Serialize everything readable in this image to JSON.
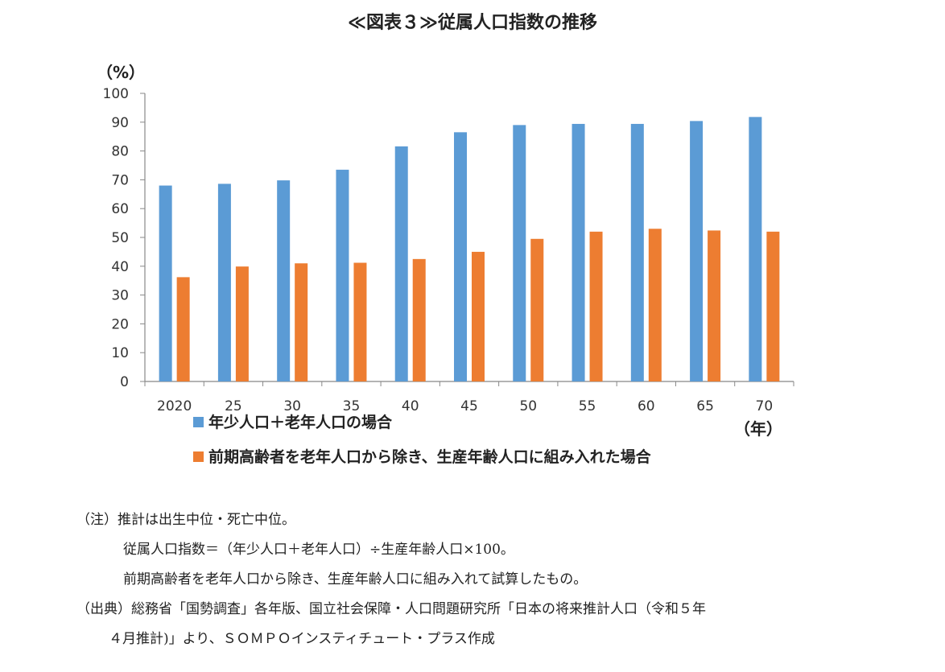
{
  "title": "≪図表３≫従属人口指数の推移",
  "chart_data": {
    "type": "bar",
    "ylabel": "（%）",
    "xlabel": "（年）",
    "ylim": [
      0,
      100
    ],
    "yticks": [
      0,
      10,
      20,
      30,
      40,
      50,
      60,
      70,
      80,
      90,
      100
    ],
    "categories": [
      "2020",
      "25",
      "30",
      "35",
      "40",
      "45",
      "50",
      "55",
      "60",
      "65",
      "70"
    ],
    "legend_position": "bottom-left",
    "series": [
      {
        "name": "年少人口＋老年人口の場合",
        "color": "#5b9bd5",
        "values": [
          68,
          68.6,
          69.8,
          73.5,
          81.6,
          86.5,
          89,
          89.4,
          89.4,
          90.4,
          91.8
        ]
      },
      {
        "name": "前期高齢者を老年人口から除き、生産年齢人口に組み入れた場合",
        "color": "#ed7d31",
        "values": [
          36.2,
          39.9,
          41,
          41.2,
          42.5,
          45,
          49.5,
          52,
          53,
          52.4,
          52
        ]
      }
    ]
  },
  "notes": [
    "（注）推計は出生中位・死亡中位。",
    "従属人口指数＝（年少人口＋老年人口）÷生産年齢人口×100。",
    "前期高齢者を老年人口から除き、生産年齢人口に組み入れて試算したもの。",
    "（出典）総務省「国勢調査」各年版、国立社会保障・人口問題研究所「日本の将来推計人口（令和５年",
    "４月推計)」より、ＳＯＭＰＯインスティチュート・プラス作成"
  ]
}
